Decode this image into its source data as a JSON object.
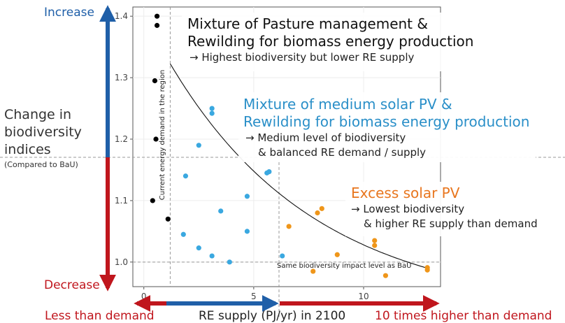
{
  "y_axis": {
    "title_lines": [
      "Change in",
      "biodiversity",
      "indices"
    ],
    "subtitle": "(Compared to BaU)",
    "increase_label": "Increase",
    "decrease_label": "Decrease"
  },
  "x_axis": {
    "title": "RE supply (PJ/yr) in 2100",
    "left_label": "Less than demand",
    "right_label": "10 times higher than demand"
  },
  "annotations": {
    "box1": {
      "title_lines": [
        "Mixture of Pasture management &",
        "Rewilding for biomass energy production"
      ],
      "note_lines": [
        "→ Highest biodiversity but lower RE supply"
      ]
    },
    "box2": {
      "title_lines": [
        "Mixture of medium solar PV &",
        "Rewilding for biomass energy production"
      ],
      "note_lines": [
        "→ Medium level of biodiversity",
        "& balanced RE demand / supply"
      ]
    },
    "box3": {
      "title_lines": [
        "Excess solar PV"
      ],
      "note_lines": [
        "→ Lowest biodiversity",
        "& higher RE supply than demand"
      ]
    },
    "vline_label": "Current energy demand in the region",
    "hline_label": "Same biodiversity impact level as BaU"
  },
  "colors": {
    "increase": "#1f5fa8",
    "decrease": "#c0161d",
    "black_series": "#000000",
    "blue_series": "#3aa8e0",
    "orange_series": "#ef961a",
    "box1_title": "#111111",
    "box2_title": "#2a8fc8",
    "box3_title": "#e8761e"
  },
  "chart_data": {
    "type": "scatter",
    "xlim": [
      -0.5,
      13.5
    ],
    "ylim": [
      0.96,
      1.415
    ],
    "x_ticks": [
      0,
      5,
      10
    ],
    "y_ticks": [
      1.0,
      1.1,
      1.2,
      1.3,
      1.4
    ],
    "grid": true,
    "reference_lines": {
      "x": 1.2,
      "y": 1.0
    },
    "series": [
      {
        "color": "black",
        "points": [
          [
            0.6,
            1.4
          ],
          [
            0.6,
            1.385
          ],
          [
            0.5,
            1.295
          ],
          [
            0.55,
            1.2
          ],
          [
            0.4,
            1.1
          ],
          [
            1.1,
            1.07
          ]
        ]
      },
      {
        "color": "blue",
        "points": [
          [
            3.1,
            1.25
          ],
          [
            3.1,
            1.242
          ],
          [
            2.5,
            1.19
          ],
          [
            1.9,
            1.14
          ],
          [
            5.6,
            1.145
          ],
          [
            5.7,
            1.147
          ],
          [
            3.5,
            1.083
          ],
          [
            4.7,
            1.107
          ],
          [
            1.8,
            1.045
          ],
          [
            4.7,
            1.05
          ],
          [
            2.5,
            1.023
          ],
          [
            3.1,
            1.01
          ],
          [
            3.9,
            1.0
          ],
          [
            6.3,
            1.01
          ]
        ]
      },
      {
        "color": "orange",
        "points": [
          [
            6.6,
            1.058
          ],
          [
            8.1,
            1.087
          ],
          [
            7.9,
            1.08
          ],
          [
            10.5,
            1.035
          ],
          [
            10.5,
            1.027
          ],
          [
            8.8,
            1.012
          ],
          [
            7.7,
            0.985
          ],
          [
            11.0,
            0.978
          ],
          [
            12.9,
            0.987
          ],
          [
            12.9,
            0.991
          ]
        ]
      }
    ],
    "fit_curve": {
      "a": 0.9205,
      "b": 0.4815,
      "k": 0.15
    }
  }
}
